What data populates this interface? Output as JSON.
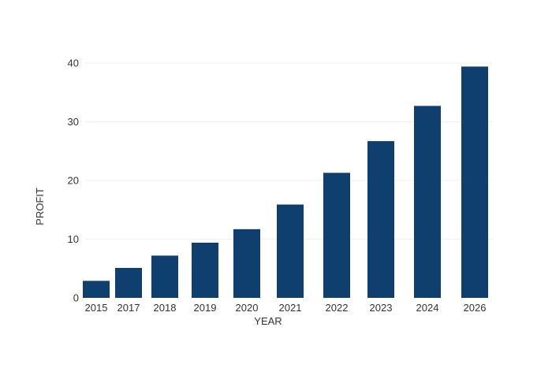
{
  "chart_data": {
    "type": "bar",
    "categories": [
      "2015",
      "2017",
      "2018",
      "2019",
      "2020",
      "2021",
      "2022",
      "2023",
      "2024",
      "2026"
    ],
    "values": [
      2.9,
      5.1,
      7.2,
      9.4,
      11.7,
      15.9,
      21.3,
      26.7,
      32.7,
      39.4
    ],
    "xlabel": "YEAR",
    "ylabel": "PROFIT",
    "ylim": [
      0,
      40
    ],
    "yticks": [
      0,
      10,
      20,
      30,
      40
    ],
    "grid": true,
    "bar_color": "#0f3f6e"
  }
}
